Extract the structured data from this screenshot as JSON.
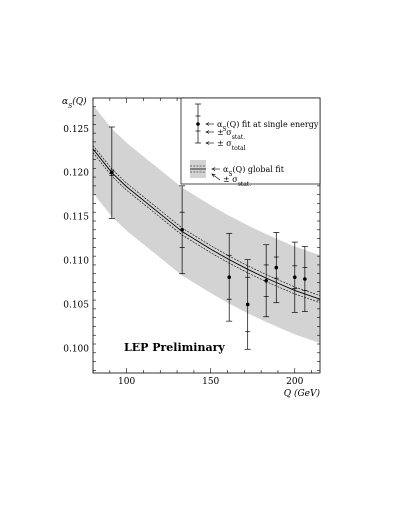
{
  "chart_data": {
    "type": "scatter",
    "ylabel": "αS(Q)",
    "xlabel": "Q (GeV)",
    "xlim": [
      80,
      215
    ],
    "ylim": [
      0.0972,
      0.1285
    ],
    "xticks": [
      100,
      150,
      200
    ],
    "xtick_labels": [
      "100",
      "150",
      "200"
    ],
    "yticks": [
      0.1,
      0.105,
      0.11,
      0.115,
      0.12,
      0.125
    ],
    "ytick_labels": [
      "0.100",
      "0.105",
      "0.110",
      "0.115",
      "0.120",
      "0.125"
    ],
    "annotation": "LEP Preliminary",
    "points": [
      {
        "x": 91.2,
        "y": 0.12,
        "stat": 0.0003,
        "total": 0.0052
      },
      {
        "x": 133,
        "y": 0.1135,
        "stat": 0.002,
        "total": 0.005
      },
      {
        "x": 161,
        "y": 0.1081,
        "stat": 0.0025,
        "total": 0.005
      },
      {
        "x": 172,
        "y": 0.105,
        "stat": 0.0031,
        "total": 0.0051
      },
      {
        "x": 183,
        "y": 0.1077,
        "stat": 0.0018,
        "total": 0.0041
      },
      {
        "x": 189,
        "y": 0.1092,
        "stat": 0.0012,
        "total": 0.004
      },
      {
        "x": 200,
        "y": 0.1081,
        "stat": 0.0013,
        "total": 0.004
      },
      {
        "x": 206,
        "y": 0.1079,
        "stat": 0.0013,
        "total": 0.0037
      }
    ],
    "global_fit": {
      "x": [
        80,
        91.2,
        100,
        133,
        150,
        161,
        172,
        183,
        189,
        200,
        206,
        215
      ],
      "y": [
        0.1227,
        0.12,
        0.1184,
        0.1133,
        0.1113,
        0.1101,
        0.109,
        0.108,
        0.1075,
        0.1066,
        0.1062,
        0.1056
      ],
      "stat_band": 0.0004,
      "total_band": 0.005
    },
    "legend": {
      "point_label": "αS(Q) fit at single energy",
      "stat_label": "± σstat.",
      "total_label": "± σtotal",
      "fit_label": "αS(Q) global fit",
      "fit_stat_label": "± σstat."
    }
  }
}
